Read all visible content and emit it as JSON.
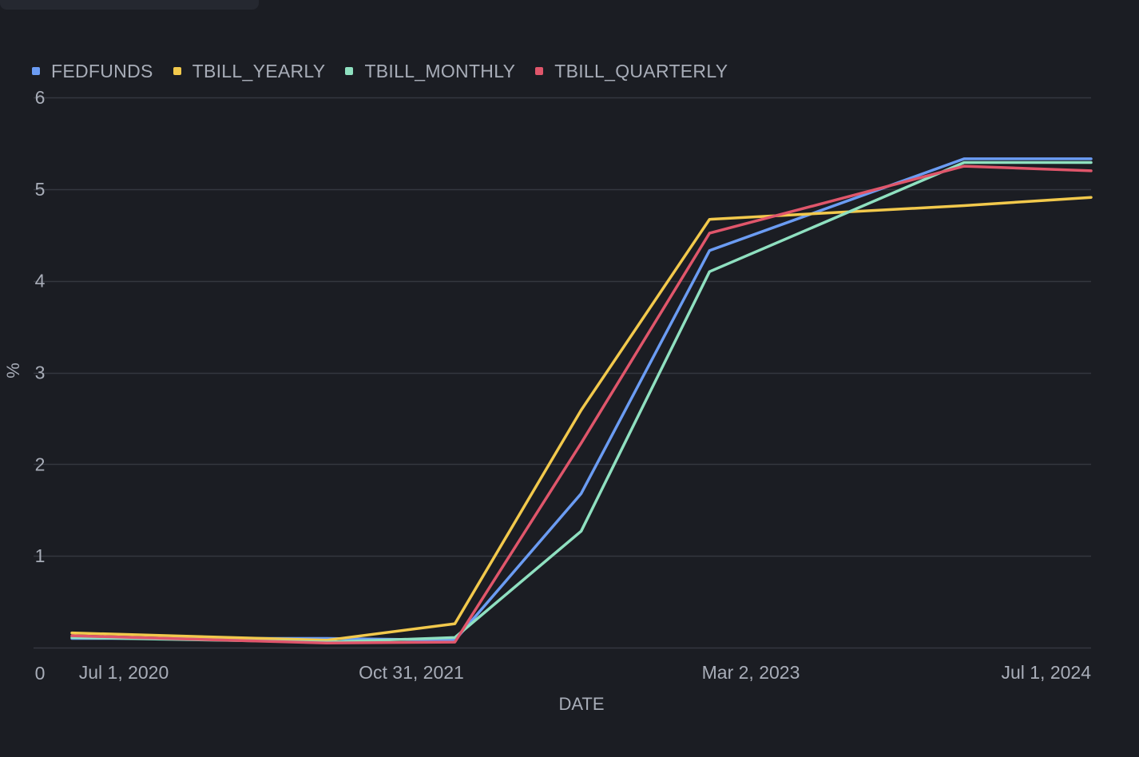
{
  "chart_data": {
    "type": "line",
    "xlabel": "DATE",
    "ylabel": "%",
    "ylim": [
      0,
      6
    ],
    "yticks": [
      0,
      1,
      2,
      3,
      4,
      5,
      6
    ],
    "x_tick_labels": [
      "Jul 1, 2020",
      "Oct 31, 2021",
      "Mar 2, 2023",
      "Jul 1, 2024"
    ],
    "x": [
      "2020-07-01",
      "2021-07-01",
      "2022-01-01",
      "2022-07-01",
      "2023-01-01",
      "2024-01-01",
      "2024-07-01"
    ],
    "series": [
      {
        "name": "FEDFUNDS",
        "color": "#6b9cf3",
        "values": [
          0.1,
          0.1,
          0.08,
          1.68,
          4.33,
          5.33,
          5.33
        ]
      },
      {
        "name": "TBILL_YEARLY",
        "color": "#f2c94c",
        "values": [
          0.16,
          0.08,
          0.26,
          2.59,
          4.67,
          4.82,
          4.91
        ]
      },
      {
        "name": "TBILL_MONTHLY",
        "color": "#8fe0c0",
        "values": [
          0.11,
          0.06,
          0.11,
          1.27,
          4.1,
          5.29,
          5.29
        ]
      },
      {
        "name": "TBILL_QUARTERLY",
        "color": "#e0566b",
        "values": [
          0.13,
          0.05,
          0.06,
          2.23,
          4.52,
          5.25,
          5.2
        ]
      }
    ],
    "grid": true,
    "legend": "top-left"
  }
}
